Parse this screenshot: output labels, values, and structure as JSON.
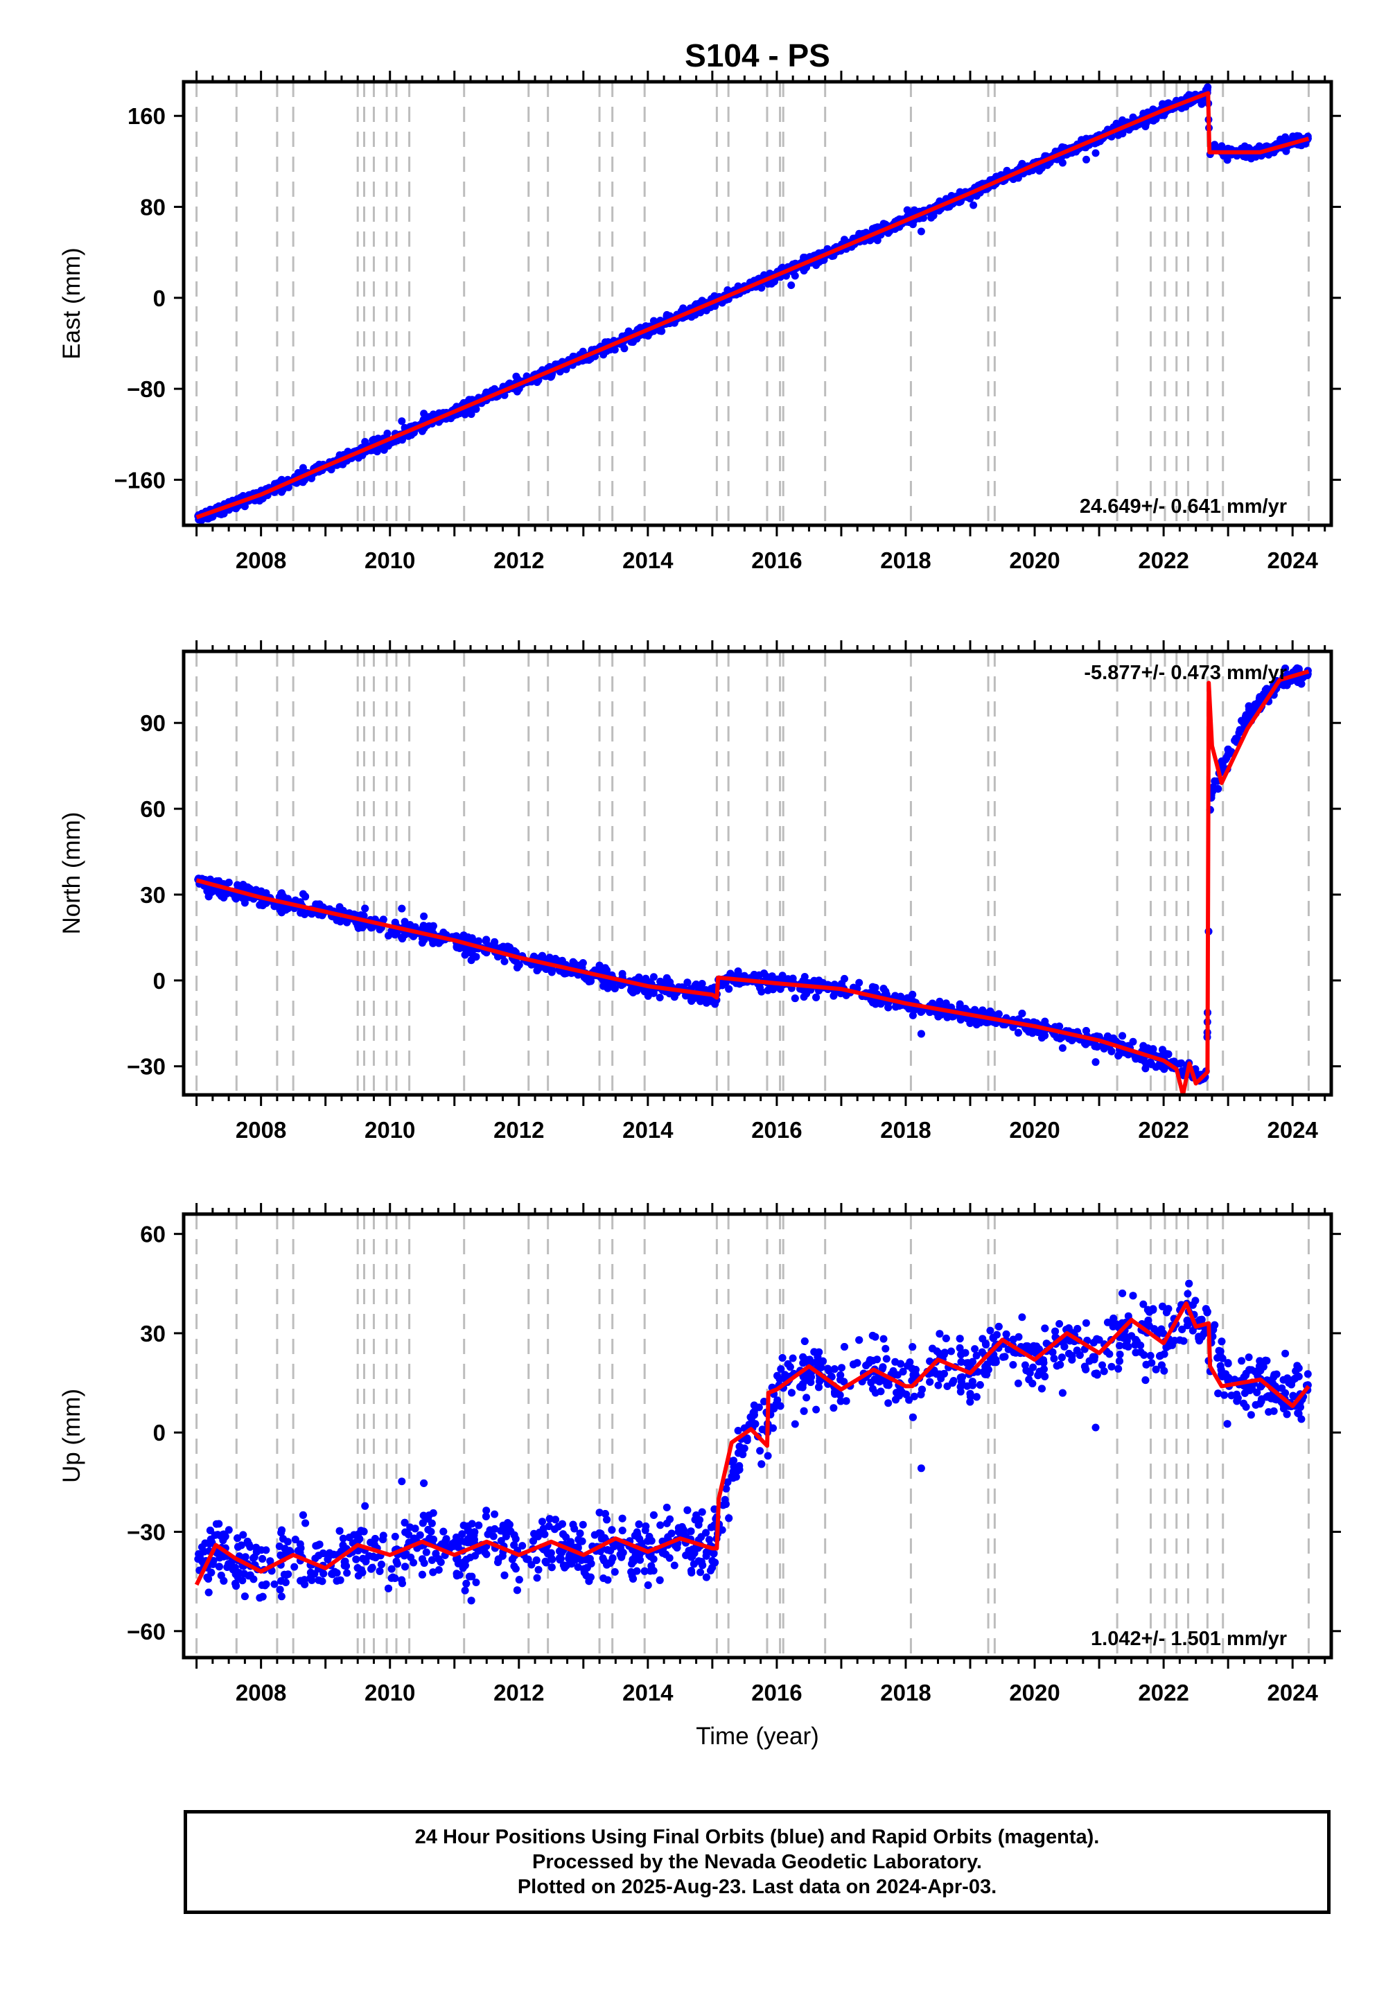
{
  "chart_data": {
    "title": "S104 - PS",
    "type": "scatter",
    "xlabel": "Time (year)",
    "xlim": [
      2006.8,
      2024.6
    ],
    "x_ticks": [
      2008,
      2010,
      2012,
      2014,
      2016,
      2018,
      2020,
      2022,
      2024
    ],
    "x_tick_labels": [
      "2008",
      "2010",
      "2012",
      "2014",
      "2016",
      "2018",
      "2020",
      "2022",
      "2024"
    ],
    "legend": "none",
    "colors": {
      "observations": "#0000ff",
      "model": "#ff0000",
      "event_lines": "#bdbdbd"
    },
    "event_lines": [
      2007.0,
      2007.62,
      2008.25,
      2008.5,
      2009.5,
      2009.6,
      2009.75,
      2009.95,
      2010.1,
      2010.3,
      2011.15,
      2012.15,
      2012.45,
      2013.25,
      2013.45,
      2013.95,
      2015.07,
      2015.25,
      2015.85,
      2016.05,
      2016.1,
      2016.75,
      2018.08,
      2019.28,
      2019.38,
      2021.28,
      2021.8,
      2022.02,
      2022.2,
      2022.38,
      2022.68,
      2022.92,
      2024.25
    ],
    "panels": [
      {
        "name": "east",
        "ylabel": "East (mm)",
        "ylim": [
          -200,
          190
        ],
        "y_ticks": [
          -160,
          -80,
          0,
          80,
          160
        ],
        "y_tick_labels": [
          "−160",
          "−80",
          "0",
          "80",
          "160"
        ],
        "rate_label": "24.649+/- 0.641 mm/yr",
        "rate_position": "bottom-right",
        "series": [
          {
            "role": "observations",
            "style": "dots",
            "noise": 3.5,
            "x": [
              2007.0,
              2008.0,
              2009.0,
              2010.0,
              2011.0,
              2012.0,
              2013.0,
              2014.0,
              2015.0,
              2016.0,
              2017.0,
              2018.0,
              2019.0,
              2020.0,
              2021.0,
              2022.0,
              2022.69,
              2022.71,
              2023.0,
              2023.5,
              2024.0,
              2024.25
            ],
            "y": [
              -193,
              -173,
              -148,
              -124,
              -100,
              -76,
              -52,
              -28,
              -4,
              20,
              44,
              68,
              92,
              117,
              141,
              165,
              180,
              132,
              128,
              128,
              136,
              140
            ]
          },
          {
            "role": "model",
            "style": "line",
            "x": [
              2007.0,
              2008.0,
              2009.0,
              2010.0,
              2011.0,
              2012.0,
              2013.0,
              2014.0,
              2015.0,
              2016.0,
              2017.0,
              2018.0,
              2019.0,
              2020.0,
              2021.0,
              2022.0,
              2022.69,
              2022.71,
              2023.0,
              2023.5,
              2024.0,
              2024.25
            ],
            "y": [
              -193,
              -173,
              -148,
              -124,
              -100,
              -76,
              -52,
              -28,
              -4,
              20,
              44,
              68,
              92,
              117,
              141,
              165,
              180,
              128,
              128,
              128,
              136,
              140
            ]
          }
        ]
      },
      {
        "name": "north",
        "ylabel": "North (mm)",
        "ylim": [
          -40,
          115
        ],
        "y_ticks": [
          -30,
          0,
          30,
          60,
          90
        ],
        "y_tick_labels": [
          "−30",
          "0",
          "30",
          "60",
          "90"
        ],
        "rate_label": "-5.877+/- 0.473 mm/yr",
        "rate_position": "top-right",
        "series": [
          {
            "role": "observations",
            "style": "dots",
            "noise": 2.2,
            "x": [
              2007.0,
              2008.0,
              2009.0,
              2010.0,
              2011.0,
              2012.0,
              2013.0,
              2014.0,
              2015.0,
              2015.07,
              2015.09,
              2016.0,
              2017.0,
              2018.0,
              2019.0,
              2020.0,
              2021.0,
              2022.0,
              2022.5,
              2022.67,
              2022.72,
              2022.9,
              2023.3,
              2023.8,
              2024.25
            ],
            "y": [
              35,
              29,
              24,
              19,
              14,
              8,
              3,
              -2,
              -5,
              -6,
              1,
              -1,
              -3,
              -8,
              -12,
              -16,
              -21,
              -28,
              -33,
              -34,
              63,
              74,
              93,
              104,
              107
            ]
          },
          {
            "role": "model",
            "style": "line",
            "x": [
              2007.0,
              2008.0,
              2009.0,
              2010.0,
              2011.0,
              2012.0,
              2013.0,
              2014.0,
              2015.0,
              2015.07,
              2015.09,
              2016.0,
              2017.0,
              2018.0,
              2019.0,
              2020.0,
              2021.0,
              2022.0,
              2022.2,
              2022.3,
              2022.4,
              2022.5,
              2022.68,
              2022.7,
              2022.75,
              2022.9,
              2023.3,
              2023.8,
              2024.25
            ],
            "y": [
              35,
              29,
              24,
              19,
              14,
              8,
              3,
              -2,
              -5,
              -6,
              1,
              -1,
              -3,
              -8,
              -12,
              -16,
              -21,
              -28,
              -31,
              -40,
              -29,
              -36,
              -32,
              104,
              82,
              69,
              88,
              105,
              108
            ]
          }
        ]
      },
      {
        "name": "up",
        "ylabel": "Up (mm)",
        "ylim": [
          -68,
          66
        ],
        "y_ticks": [
          -60,
          -30,
          0,
          30,
          60
        ],
        "y_tick_labels": [
          "−60",
          "−30",
          "0",
          "30",
          "60"
        ],
        "rate_label": "1.042+/- 1.501 mm/yr",
        "rate_position": "bottom-right",
        "series": [
          {
            "role": "observations",
            "style": "dots",
            "noise": 6.5,
            "x": [
              2007.0,
              2007.3,
              2007.6,
              2008.0,
              2008.5,
              2009.0,
              2009.5,
              2010.0,
              2010.5,
              2011.0,
              2011.5,
              2012.0,
              2012.5,
              2013.0,
              2013.5,
              2014.0,
              2014.5,
              2015.0,
              2015.2,
              2015.6,
              2015.85,
              2016.0,
              2016.5,
              2017.0,
              2017.5,
              2018.0,
              2018.5,
              2019.0,
              2019.5,
              2020.0,
              2020.5,
              2021.0,
              2021.5,
              2022.0,
              2022.4,
              2022.7,
              2023.0,
              2023.5,
              2024.0,
              2024.25
            ],
            "y": [
              -40,
              -32,
              -38,
              -42,
              -37,
              -41,
              -34,
              -37,
              -33,
              -37,
              -33,
              -37,
              -33,
              -37,
              -32,
              -36,
              -32,
              -35,
              -18,
              2,
              0,
              13,
              19,
              14,
              20,
              14,
              22,
              18,
              27,
              22,
              29,
              24,
              32,
              27,
              36,
              30,
              15,
              16,
              9,
              14
            ]
          },
          {
            "role": "model",
            "style": "line",
            "x": [
              2007.0,
              2007.3,
              2007.6,
              2008.0,
              2008.5,
              2009.0,
              2009.5,
              2010.0,
              2010.5,
              2011.0,
              2011.5,
              2012.0,
              2012.5,
              2013.0,
              2013.5,
              2014.0,
              2014.5,
              2015.0,
              2015.07,
              2015.1,
              2015.3,
              2015.6,
              2015.85,
              2015.87,
              2016.0,
              2016.5,
              2017.0,
              2017.5,
              2018.0,
              2018.1,
              2018.5,
              2019.0,
              2019.5,
              2020.0,
              2020.5,
              2021.0,
              2021.5,
              2022.0,
              2022.35,
              2022.5,
              2022.7,
              2022.72,
              2022.9,
              2023.5,
              2024.0,
              2024.25
            ],
            "y": [
              -46,
              -34,
              -38,
              -42,
              -37,
              -41,
              -34,
              -37,
              -33,
              -37,
              -33,
              -37,
              -33,
              -37,
              -32,
              -36,
              -32,
              -35,
              -35,
              -20,
              -3,
              1,
              -4,
              12,
              13,
              20,
              13,
              19,
              14,
              14,
              22,
              18,
              28,
              22,
              30,
              24,
              34,
              27,
              39,
              32,
              33,
              20,
              14,
              16,
              8,
              14
            ]
          }
        ]
      }
    ]
  },
  "footer": {
    "line1": "24 Hour Positions Using Final Orbits (blue) and Rapid Orbits (magenta).",
    "line2": "Processed by the Nevada Geodetic Laboratory.",
    "line3": "Plotted on 2025-Aug-23. Last data on 2024-Apr-03."
  }
}
